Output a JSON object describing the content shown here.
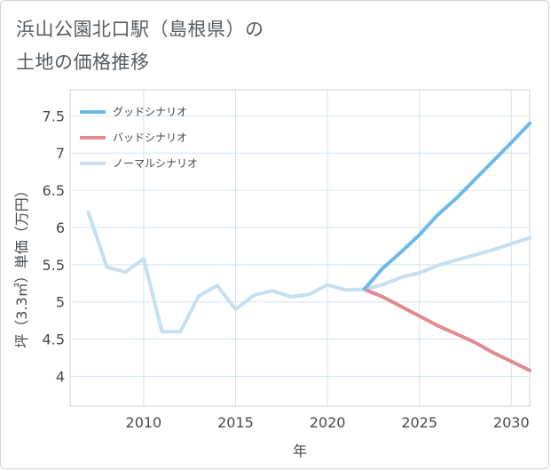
{
  "title": "浜山公園北口駅（島根県）の\n土地の価格推移",
  "chart_data": {
    "type": "line",
    "title": "浜山公園北口駅（島根県）の土地の価格推移",
    "xlabel": "年",
    "ylabel": "坪（3.3㎡）単価（万円）",
    "xlim": [
      2006,
      2031
    ],
    "ylim": [
      3.6,
      7.85
    ],
    "xticks": [
      2010,
      2015,
      2020,
      2025,
      2030
    ],
    "yticks": [
      4,
      4.5,
      5,
      5.5,
      6,
      6.5,
      7,
      7.5
    ],
    "grid": true,
    "legend_position": "top-left",
    "series": [
      {
        "name": "グッドシナリオ",
        "color": "#6cb8ec",
        "x": [
          2022,
          2023,
          2024,
          2025,
          2026,
          2027,
          2028,
          2029,
          2030,
          2031
        ],
        "values": [
          5.17,
          5.45,
          5.67,
          5.9,
          6.17,
          6.39,
          6.64,
          6.89,
          7.14,
          7.4
        ]
      },
      {
        "name": "バッドシナリオ",
        "color": "#e08b93",
        "x": [
          2022,
          2023,
          2024,
          2025,
          2026,
          2027,
          2028,
          2029,
          2030,
          2031
        ],
        "values": [
          5.17,
          5.07,
          4.94,
          4.81,
          4.68,
          4.57,
          4.46,
          4.32,
          4.2,
          4.08
        ]
      },
      {
        "name": "ノーマルシナリオ",
        "color": "#c6e0ef",
        "x": [
          2007,
          2008,
          2009,
          2010,
          2011,
          2012,
          2013,
          2014,
          2015,
          2016,
          2017,
          2018,
          2019,
          2020,
          2021,
          2022,
          2023,
          2024,
          2025,
          2026,
          2027,
          2028,
          2029,
          2030,
          2031
        ],
        "values": [
          6.2,
          5.47,
          5.4,
          5.58,
          4.6,
          4.6,
          5.08,
          5.22,
          4.9,
          5.09,
          5.15,
          5.07,
          5.1,
          5.23,
          5.16,
          5.17,
          5.23,
          5.33,
          5.39,
          5.49,
          5.56,
          5.63,
          5.7,
          5.78,
          5.86
        ]
      }
    ]
  }
}
